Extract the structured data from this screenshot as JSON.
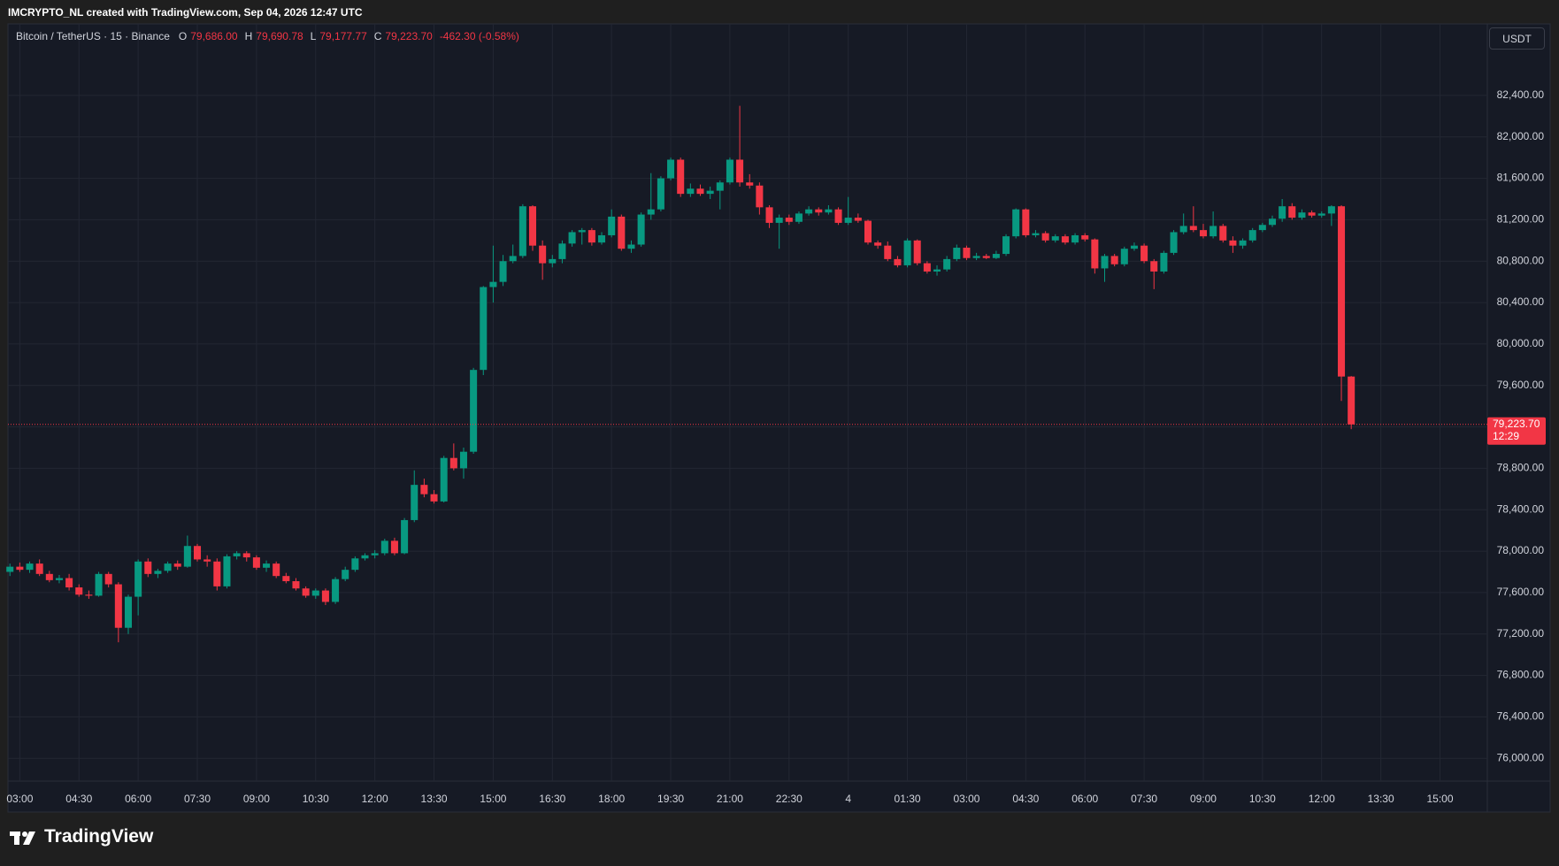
{
  "header": {
    "attribution": "IMCRYPTO_NL created with TradingView.com, Sep 04, 2026 12:47 UTC"
  },
  "legend": {
    "symbol": "Bitcoin / TetherUS · 15 · Binance",
    "ohlc": [
      {
        "key": "O",
        "value": "79,686.00"
      },
      {
        "key": "H",
        "value": "79,690.78"
      },
      {
        "key": "L",
        "value": "79,177.77"
      },
      {
        "key": "C",
        "value": "79,223.70"
      }
    ],
    "change": "-462.30 (-0.58%)"
  },
  "currency": "USDT",
  "logo": "TradingView",
  "chart_data": {
    "type": "candlestick",
    "up_color": "#089981",
    "down_color": "#f23645",
    "grid": true,
    "last_price_label": "79,223.70",
    "countdown": "12:29",
    "xlim": [
      2.7,
      40.2
    ],
    "xticks": [
      {
        "value": 3,
        "label": "03:00"
      },
      {
        "value": 4.5,
        "label": "04:30"
      },
      {
        "value": 6,
        "label": "06:00"
      },
      {
        "value": 7.5,
        "label": "07:30"
      },
      {
        "value": 9,
        "label": "09:00"
      },
      {
        "value": 10.5,
        "label": "10:30"
      },
      {
        "value": 12,
        "label": "12:00"
      },
      {
        "value": 13.5,
        "label": "13:30"
      },
      {
        "value": 15,
        "label": "15:00"
      },
      {
        "value": 16.5,
        "label": "16:30"
      },
      {
        "value": 18,
        "label": "18:00"
      },
      {
        "value": 19.5,
        "label": "19:30"
      },
      {
        "value": 21,
        "label": "21:00"
      },
      {
        "value": 22.5,
        "label": "22:30"
      },
      {
        "value": 24,
        "label": "4"
      },
      {
        "value": 25.5,
        "label": "01:30"
      },
      {
        "value": 27,
        "label": "03:00"
      },
      {
        "value": 28.5,
        "label": "04:30"
      },
      {
        "value": 30,
        "label": "06:00"
      },
      {
        "value": 31.5,
        "label": "07:30"
      },
      {
        "value": 33,
        "label": "09:00"
      },
      {
        "value": 34.5,
        "label": "10:30"
      },
      {
        "value": 36,
        "label": "12:00"
      },
      {
        "value": 37.5,
        "label": "13:30"
      },
      {
        "value": 39,
        "label": "15:00"
      }
    ],
    "ylim": [
      75780,
      83091
    ],
    "yticks": [
      {
        "value": 76000,
        "label": "76,000.00"
      },
      {
        "value": 76400,
        "label": "76,400.00"
      },
      {
        "value": 76800,
        "label": "76,800.00"
      },
      {
        "value": 77200,
        "label": "77,200.00"
      },
      {
        "value": 77600,
        "label": "77,600.00"
      },
      {
        "value": 78000,
        "label": "78,000.00"
      },
      {
        "value": 78400,
        "label": "78,400.00"
      },
      {
        "value": 78800,
        "label": "78,800.00"
      },
      {
        "value": 79200,
        "label": "79,200.00"
      },
      {
        "value": 79600,
        "label": "79,600.00"
      },
      {
        "value": 80000,
        "label": "80,000.00"
      },
      {
        "value": 80400,
        "label": "80,400.00"
      },
      {
        "value": 80800,
        "label": "80,800.00"
      },
      {
        "value": 81200,
        "label": "81,200.00"
      },
      {
        "value": 81600,
        "label": "81,600.00"
      },
      {
        "value": 82000,
        "label": "82,000.00"
      },
      {
        "value": 82400,
        "label": "82,400.00"
      }
    ],
    "x": [
      2.75,
      3,
      3.25,
      3.5,
      3.75,
      4,
      4.25,
      4.5,
      4.75,
      5,
      5.25,
      5.5,
      5.75,
      6,
      6.25,
      6.5,
      6.75,
      7,
      7.25,
      7.5,
      7.75,
      8,
      8.25,
      8.5,
      8.75,
      9,
      9.25,
      9.5,
      9.75,
      10,
      10.25,
      10.5,
      10.75,
      11,
      11.25,
      11.5,
      11.75,
      12,
      12.25,
      12.5,
      12.75,
      13,
      13.25,
      13.5,
      13.75,
      14,
      14.25,
      14.5,
      14.75,
      15,
      15.25,
      15.5,
      15.75,
      16,
      16.25,
      16.5,
      16.75,
      17,
      17.25,
      17.5,
      17.75,
      18,
      18.25,
      18.5,
      18.75,
      19,
      19.25,
      19.5,
      19.75,
      20,
      20.25,
      20.5,
      20.75,
      21,
      21.25,
      21.5,
      21.75,
      22,
      22.25,
      22.5,
      22.75,
      23,
      23.25,
      23.5,
      23.75,
      24,
      24.25,
      24.5,
      24.75,
      25,
      25.25,
      25.5,
      25.75,
      26,
      26.25,
      26.5,
      26.75,
      27,
      27.25,
      27.5,
      27.75,
      28,
      28.25,
      28.5,
      28.75,
      29,
      29.25,
      29.5,
      29.75,
      30,
      30.25,
      30.5,
      30.75,
      31,
      31.25,
      31.5,
      31.75,
      32,
      32.25,
      32.5,
      32.75,
      33,
      33.25,
      33.5,
      33.75,
      34,
      34.25,
      34.5,
      34.75,
      35,
      35.25,
      35.5,
      35.75,
      36,
      36.25,
      36.5,
      36.75
    ],
    "values": [
      [
        77800,
        77880,
        77760,
        77850
      ],
      [
        77850,
        77890,
        77800,
        77820
      ],
      [
        77820,
        77900,
        77790,
        77880
      ],
      [
        77880,
        77920,
        77760,
        77780
      ],
      [
        77780,
        77810,
        77700,
        77720
      ],
      [
        77720,
        77770,
        77690,
        77740
      ],
      [
        77740,
        77780,
        77620,
        77650
      ],
      [
        77650,
        77680,
        77560,
        77580
      ],
      [
        77580,
        77620,
        77540,
        77570
      ],
      [
        77570,
        77800,
        77560,
        77780
      ],
      [
        77780,
        77800,
        77650,
        77680
      ],
      [
        77680,
        77700,
        77120,
        77260
      ],
      [
        77260,
        77580,
        77200,
        77560
      ],
      [
        77560,
        77920,
        77380,
        77900
      ],
      [
        77900,
        77930,
        77750,
        77780
      ],
      [
        77780,
        77830,
        77740,
        77810
      ],
      [
        77810,
        77900,
        77790,
        77880
      ],
      [
        77880,
        77910,
        77820,
        77850
      ],
      [
        77850,
        78150,
        77840,
        78050
      ],
      [
        78050,
        78070,
        77900,
        77920
      ],
      [
        77920,
        77960,
        77850,
        77900
      ],
      [
        77900,
        77930,
        77620,
        77660
      ],
      [
        77660,
        77970,
        77640,
        77950
      ],
      [
        77950,
        78000,
        77920,
        77980
      ],
      [
        77980,
        78000,
        77900,
        77940
      ],
      [
        77940,
        77960,
        77820,
        77840
      ],
      [
        77840,
        77910,
        77800,
        77880
      ],
      [
        77880,
        77900,
        77740,
        77760
      ],
      [
        77760,
        77790,
        77690,
        77710
      ],
      [
        77710,
        77740,
        77620,
        77640
      ],
      [
        77640,
        77660,
        77550,
        77570
      ],
      [
        77570,
        77640,
        77540,
        77620
      ],
      [
        77620,
        77640,
        77480,
        77510
      ],
      [
        77510,
        77750,
        77490,
        77730
      ],
      [
        77730,
        77850,
        77710,
        77820
      ],
      [
        77820,
        77950,
        77800,
        77930
      ],
      [
        77930,
        77980,
        77910,
        77960
      ],
      [
        77960,
        78010,
        77930,
        77980
      ],
      [
        77980,
        78120,
        77960,
        78100
      ],
      [
        78100,
        78130,
        77960,
        77980
      ],
      [
        77980,
        78320,
        77970,
        78300
      ],
      [
        78300,
        78780,
        78280,
        78640
      ],
      [
        78640,
        78700,
        78520,
        78550
      ],
      [
        78550,
        78590,
        78460,
        78480
      ],
      [
        78480,
        78920,
        78470,
        78900
      ],
      [
        78900,
        79040,
        78780,
        78800
      ],
      [
        78800,
        79000,
        78700,
        78960
      ],
      [
        78960,
        79770,
        78940,
        79750
      ],
      [
        79750,
        80560,
        79700,
        80550
      ],
      [
        80550,
        80950,
        80400,
        80600
      ],
      [
        80600,
        80860,
        80560,
        80800
      ],
      [
        80800,
        80960,
        80780,
        80850
      ],
      [
        80850,
        81350,
        80830,
        81330
      ],
      [
        81330,
        81340,
        80900,
        80950
      ],
      [
        80950,
        81000,
        80620,
        80780
      ],
      [
        80780,
        80860,
        80740,
        80820
      ],
      [
        80820,
        81000,
        80780,
        80970
      ],
      [
        80970,
        81100,
        80940,
        81080
      ],
      [
        81080,
        81120,
        80960,
        81100
      ],
      [
        81100,
        81120,
        80950,
        80980
      ],
      [
        80980,
        81080,
        80960,
        81050
      ],
      [
        81050,
        81300,
        81030,
        81230
      ],
      [
        81230,
        81250,
        80900,
        80920
      ],
      [
        80920,
        81000,
        80880,
        80960
      ],
      [
        80960,
        81270,
        80940,
        81250
      ],
      [
        81250,
        81650,
        81200,
        81300
      ],
      [
        81300,
        81620,
        81280,
        81600
      ],
      [
        81600,
        81800,
        81580,
        81780
      ],
      [
        81780,
        81800,
        81420,
        81450
      ],
      [
        81450,
        81550,
        81420,
        81500
      ],
      [
        81500,
        81540,
        81430,
        81450
      ],
      [
        81450,
        81520,
        81400,
        81480
      ],
      [
        81480,
        81580,
        81300,
        81560
      ],
      [
        81560,
        81800,
        81540,
        81780
      ],
      [
        81780,
        82300,
        81520,
        81560
      ],
      [
        81560,
        81640,
        81500,
        81530
      ],
      [
        81530,
        81560,
        81250,
        81320
      ],
      [
        81320,
        81340,
        81120,
        81170
      ],
      [
        81170,
        81250,
        80920,
        81220
      ],
      [
        81220,
        81250,
        81150,
        81180
      ],
      [
        81180,
        81280,
        81160,
        81260
      ],
      [
        81260,
        81330,
        81240,
        81300
      ],
      [
        81300,
        81320,
        81240,
        81270
      ],
      [
        81270,
        81340,
        81250,
        81300
      ],
      [
        81300,
        81320,
        81150,
        81170
      ],
      [
        81170,
        81420,
        81150,
        81220
      ],
      [
        81220,
        81260,
        81170,
        81190
      ],
      [
        81190,
        81200,
        80960,
        80980
      ],
      [
        80980,
        81000,
        80920,
        80950
      ],
      [
        80950,
        80990,
        80800,
        80820
      ],
      [
        80820,
        80850,
        80740,
        80760
      ],
      [
        80760,
        81020,
        80740,
        81000
      ],
      [
        81000,
        81010,
        80760,
        80780
      ],
      [
        80780,
        80800,
        80680,
        80700
      ],
      [
        80700,
        80760,
        80660,
        80720
      ],
      [
        80720,
        80850,
        80700,
        80820
      ],
      [
        80820,
        80960,
        80800,
        80930
      ],
      [
        80930,
        80950,
        80810,
        80830
      ],
      [
        80830,
        80880,
        80810,
        80850
      ],
      [
        80850,
        80870,
        80820,
        80830
      ],
      [
        80830,
        80900,
        80820,
        80870
      ],
      [
        80870,
        81060,
        80850,
        81040
      ],
      [
        81040,
        81310,
        81020,
        81300
      ],
      [
        81300,
        81310,
        81030,
        81050
      ],
      [
        81050,
        81100,
        81030,
        81070
      ],
      [
        81070,
        81090,
        80980,
        81000
      ],
      [
        81000,
        81060,
        80980,
        81040
      ],
      [
        81040,
        81060,
        80960,
        80980
      ],
      [
        80980,
        81070,
        80960,
        81050
      ],
      [
        81050,
        81070,
        80990,
        81010
      ],
      [
        81010,
        81020,
        80680,
        80730
      ],
      [
        80730,
        80870,
        80600,
        80850
      ],
      [
        80850,
        80870,
        80750,
        80770
      ],
      [
        80770,
        80940,
        80750,
        80920
      ],
      [
        80920,
        80980,
        80900,
        80950
      ],
      [
        80950,
        80970,
        80780,
        80800
      ],
      [
        80800,
        80820,
        80530,
        80700
      ],
      [
        80700,
        80900,
        80680,
        80880
      ],
      [
        80880,
        81100,
        80860,
        81080
      ],
      [
        81080,
        81260,
        81060,
        81140
      ],
      [
        81140,
        81330,
        81080,
        81100
      ],
      [
        81100,
        81160,
        81020,
        81040
      ],
      [
        81040,
        81280,
        81020,
        81140
      ],
      [
        81140,
        81160,
        80980,
        81000
      ],
      [
        81000,
        81040,
        80880,
        80950
      ],
      [
        80950,
        81020,
        80920,
        81000
      ],
      [
        81000,
        81120,
        80980,
        81100
      ],
      [
        81100,
        81170,
        81080,
        81150
      ],
      [
        81150,
        81240,
        81130,
        81210
      ],
      [
        81210,
        81400,
        81180,
        81330
      ],
      [
        81330,
        81360,
        81200,
        81220
      ],
      [
        81220,
        81300,
        81200,
        81270
      ],
      [
        81270,
        81290,
        81220,
        81240
      ],
      [
        81240,
        81280,
        81220,
        81260
      ],
      [
        81260,
        81340,
        81140,
        81330
      ],
      [
        81330,
        81340,
        79450,
        79686
      ],
      [
        79686,
        79690.78,
        79177.77,
        79223.7
      ]
    ]
  }
}
